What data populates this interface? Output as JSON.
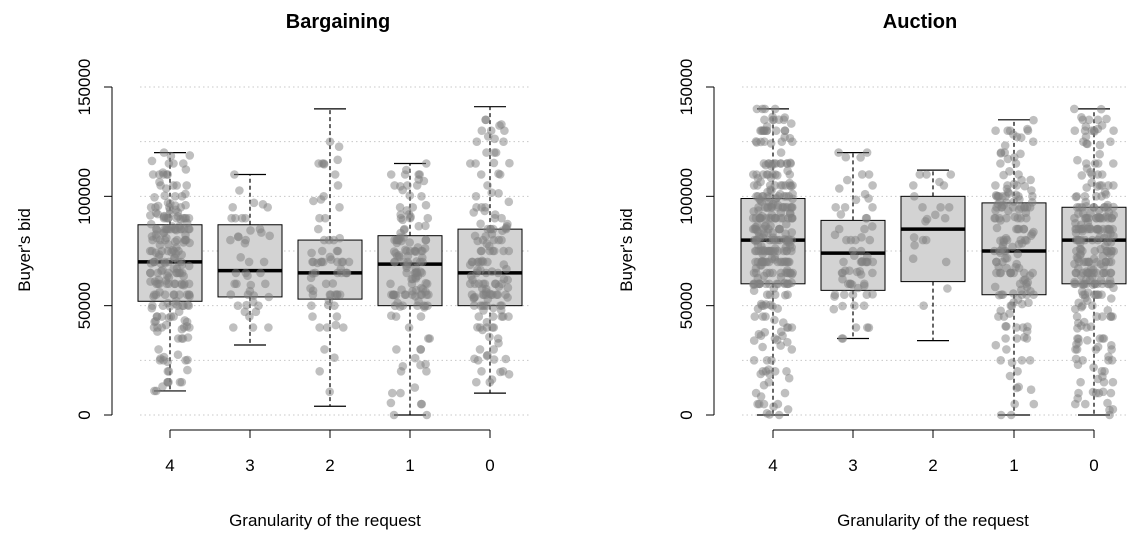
{
  "chart_data": [
    {
      "type": "boxplot",
      "title": "Bargaining",
      "xlabel": "Granularity of the request",
      "ylabel": "Buyer's bid",
      "categories": [
        "4",
        "3",
        "2",
        "1",
        "0"
      ],
      "y_ticks": [
        0,
        50000,
        100000,
        150000
      ],
      "ylim": [
        0,
        150000
      ],
      "grid": "horizontal dotted at 25000 intervals",
      "jitter_points": "overlaid semi-transparent grey",
      "boxes": [
        {
          "category": "4",
          "whisker_low": 11000,
          "q1": 52000,
          "median": 70000,
          "q3": 87000,
          "whisker_high": 120000,
          "n_points": 220
        },
        {
          "category": "3",
          "whisker_low": 32000,
          "q1": 54000,
          "median": 66000,
          "q3": 87000,
          "whisker_high": 110000,
          "n_points": 45
        },
        {
          "category": "2",
          "whisker_low": 4000,
          "q1": 53000,
          "median": 65000,
          "q3": 80000,
          "whisker_high": 140000,
          "n_points": 70
        },
        {
          "category": "1",
          "whisker_low": 0,
          "q1": 50000,
          "median": 69000,
          "q3": 82000,
          "whisker_high": 115000,
          "n_points": 140
        },
        {
          "category": "0",
          "whisker_low": 10000,
          "q1": 50000,
          "median": 65000,
          "q3": 85000,
          "whisker_high": 141000,
          "n_points": 150
        }
      ]
    },
    {
      "type": "boxplot",
      "title": "Auction",
      "xlabel": "Granularity of the request",
      "ylabel": "Buyer's bid",
      "categories": [
        "4",
        "3",
        "2",
        "1",
        "0"
      ],
      "y_ticks": [
        0,
        50000,
        100000,
        150000
      ],
      "ylim": [
        0,
        150000
      ],
      "grid": "horizontal dotted at 25000 intervals",
      "jitter_points": "overlaid semi-transparent grey",
      "boxes": [
        {
          "category": "4",
          "whisker_low": 0,
          "q1": 60000,
          "median": 80000,
          "q3": 99000,
          "whisker_high": 140000,
          "n_points": 320
        },
        {
          "category": "3",
          "whisker_low": 35000,
          "q1": 57000,
          "median": 74000,
          "q3": 89000,
          "whisker_high": 120000,
          "n_points": 70
        },
        {
          "category": "2",
          "whisker_low": 34000,
          "q1": 61000,
          "median": 85000,
          "q3": 100000,
          "whisker_high": 112000,
          "n_points": 22
        },
        {
          "category": "1",
          "whisker_low": 0,
          "q1": 55000,
          "median": 75000,
          "q3": 97000,
          "whisker_high": 135000,
          "n_points": 170
        },
        {
          "category": "0",
          "whisker_low": 0,
          "q1": 60000,
          "median": 80000,
          "q3": 95000,
          "whisker_high": 140000,
          "n_points": 270
        }
      ]
    }
  ]
}
